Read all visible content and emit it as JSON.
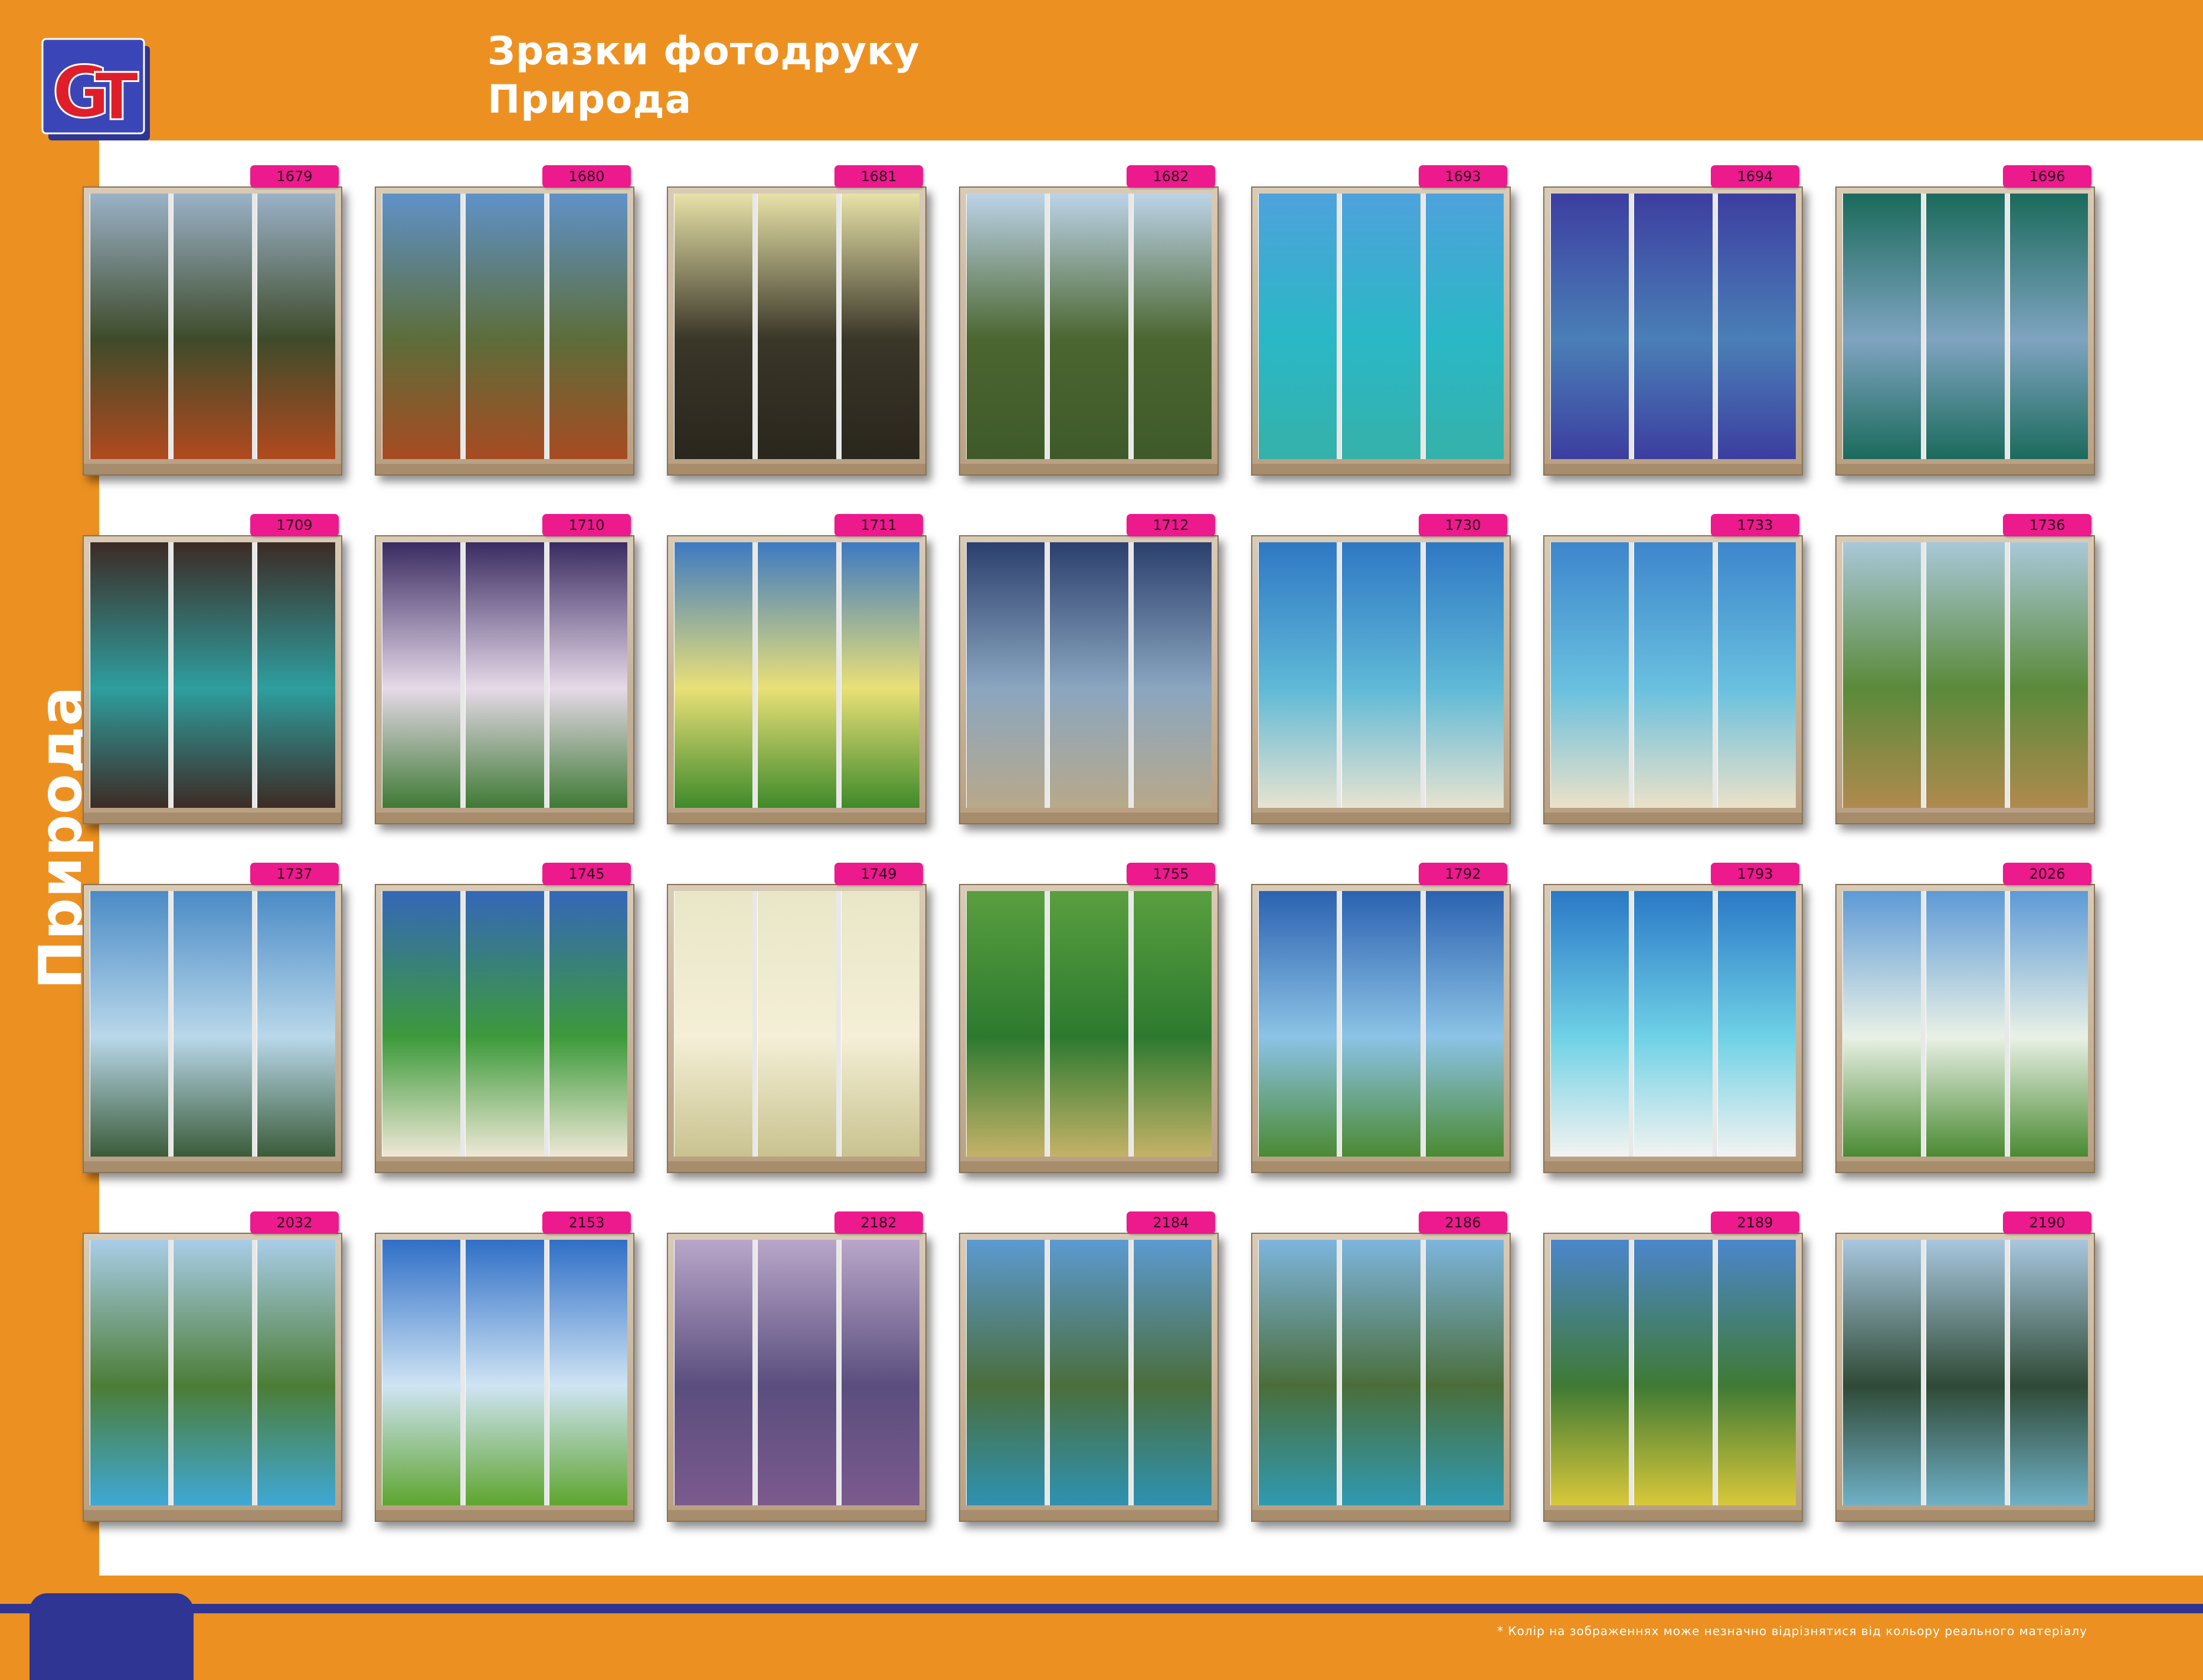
{
  "header": {
    "line1": "Зразки фотодруку",
    "line2": "Природа"
  },
  "side_label": "Природа",
  "footer": {
    "note": "* Колір на зображеннях може незначно відрізнятися від кольору реального матеріалу"
  },
  "colors": {
    "brand_orange": "#ec9121",
    "brand_blue": "#2e3592",
    "badge_pink": "#ec1a8c",
    "logo_red": "#e01e2a"
  },
  "logo": {
    "letters": "GT"
  },
  "samples": [
    {
      "code": "1679",
      "scene": "autumn-mountains",
      "colors": [
        "#9bb2c8",
        "#3e4b2a",
        "#b14a1e"
      ]
    },
    {
      "code": "1680",
      "scene": "alpine-valley",
      "colors": [
        "#5f92c9",
        "#5d6d3a",
        "#a84b22"
      ]
    },
    {
      "code": "1681",
      "scene": "pine-forest",
      "colors": [
        "#e8e2a8",
        "#3a3628",
        "#29261d"
      ]
    },
    {
      "code": "1682",
      "scene": "trees-park",
      "colors": [
        "#bdd3e8",
        "#4b6630",
        "#3f5a2a"
      ]
    },
    {
      "code": "1693",
      "scene": "palm-sea",
      "colors": [
        "#4ea2dc",
        "#2ab8c6",
        "#35b1a9"
      ]
    },
    {
      "code": "1694",
      "scene": "sea-flowers",
      "colors": [
        "#3c3ea0",
        "#4a7fb7",
        "#3c3ea0"
      ]
    },
    {
      "code": "1696",
      "scene": "lake-mountains",
      "colors": [
        "#1b6a5c",
        "#7fa4c0",
        "#1b6a5c"
      ]
    },
    {
      "code": "1709",
      "scene": "mountain-lake",
      "colors": [
        "#3d2b25",
        "#2e9e9e",
        "#3d2b25"
      ]
    },
    {
      "code": "1710",
      "scene": "poppies-sunset",
      "colors": [
        "#3a2b62",
        "#e6d9e8",
        "#3f7a35"
      ]
    },
    {
      "code": "1711",
      "scene": "meadow-sun",
      "colors": [
        "#3e7ac2",
        "#e9e077",
        "#3f8a2a"
      ]
    },
    {
      "code": "1712",
      "scene": "palm-beach-night",
      "colors": [
        "#2c3f6e",
        "#8aa6c0",
        "#b8a98a"
      ]
    },
    {
      "code": "1730",
      "scene": "palm-ocean",
      "colors": [
        "#2f78c4",
        "#5fb9d6",
        "#e7e3d0"
      ]
    },
    {
      "code": "1733",
      "scene": "beach-sea",
      "colors": [
        "#3d86cc",
        "#69c0df",
        "#ebe1c8"
      ]
    },
    {
      "code": "1736",
      "scene": "tropical-hammock",
      "colors": [
        "#a9c8d8",
        "#5a8a3a",
        "#b08a4e"
      ]
    },
    {
      "code": "1737",
      "scene": "stones-sea",
      "colors": [
        "#4b8bc6",
        "#b9d8ea",
        "#3b5c3a"
      ]
    },
    {
      "code": "1745",
      "scene": "palms-beach",
      "colors": [
        "#3567b8",
        "#3d9a3b",
        "#efe8d6"
      ]
    },
    {
      "code": "1749",
      "scene": "palm-leaf-sunset",
      "colors": [
        "#e9e6c8",
        "#f4efd6",
        "#c9c28f"
      ]
    },
    {
      "code": "1755",
      "scene": "jungle-rocks",
      "colors": [
        "#5a9f3f",
        "#2c7a2f",
        "#c5b267"
      ]
    },
    {
      "code": "1792",
      "scene": "palms-sun",
      "colors": [
        "#2b62b0",
        "#8cc3e6",
        "#4b8a32"
      ]
    },
    {
      "code": "1793",
      "scene": "single-palm",
      "colors": [
        "#2a79c6",
        "#6fd1e6",
        "#f3f3f0"
      ]
    },
    {
      "code": "2026",
      "scene": "daisies",
      "colors": [
        "#5d9ad6",
        "#e9f1e6",
        "#4a8a32"
      ]
    },
    {
      "code": "2032",
      "scene": "resort-pool",
      "colors": [
        "#a9cde8",
        "#4c7d36",
        "#3fa8d6"
      ]
    },
    {
      "code": "2153",
      "scene": "yellow-flowers",
      "colors": [
        "#2f6fc6",
        "#cfe4f4",
        "#5ea52f"
      ]
    },
    {
      "code": "2182",
      "scene": "purple-lake",
      "colors": [
        "#b9a6c9",
        "#5a4e7e",
        "#7c5a8e"
      ]
    },
    {
      "code": "2184",
      "scene": "mountain-river",
      "colors": [
        "#5c9ad2",
        "#4b6e3c",
        "#2e92b2"
      ]
    },
    {
      "code": "2186",
      "scene": "waterfall-lake",
      "colors": [
        "#7eb5de",
        "#4a6e3a",
        "#2f9ab2"
      ]
    },
    {
      "code": "2189",
      "scene": "dandelion-valley",
      "colors": [
        "#4b86cc",
        "#3f7a34",
        "#d9c83a"
      ]
    },
    {
      "code": "2190",
      "scene": "forest-lake",
      "colors": [
        "#a8c7de",
        "#2f4a36",
        "#6fb0c6"
      ]
    }
  ]
}
